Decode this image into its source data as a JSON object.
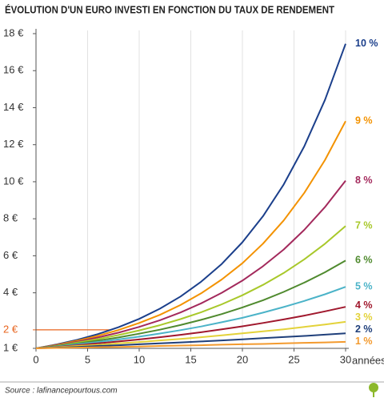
{
  "chart_data": {
    "type": "line",
    "title": "ÉVOLUTION D'UN EURO INVESTI EN FONCTION DU TAUX DE RENDEMENT",
    "x_label": "années",
    "source": "Source : lafinancepourtous.com",
    "x": [
      0,
      2,
      4,
      6,
      8,
      10,
      12,
      14,
      16,
      18,
      20,
      22,
      24,
      26,
      28,
      30
    ],
    "xlim": [
      0,
      30
    ],
    "xticks": [
      0,
      5,
      10,
      15,
      20,
      25,
      30
    ],
    "ylim": [
      1,
      18
    ],
    "yticks": [
      {
        "value": 1,
        "label": "1 €"
      },
      {
        "value": 2,
        "label": "2 €"
      },
      {
        "value": 4,
        "label": "4 €"
      },
      {
        "value": 6,
        "label": "6 €"
      },
      {
        "value": 8,
        "label": "8 €"
      },
      {
        "value": 10,
        "label": "10 €"
      },
      {
        "value": 12,
        "label": "12 €"
      },
      {
        "value": 14,
        "label": "14 €"
      },
      {
        "value": 16,
        "label": "16 €"
      },
      {
        "value": 18,
        "label": "18 €"
      }
    ],
    "reference_line": 2,
    "reference_color": "#e8641e",
    "grid": true,
    "series": [
      {
        "name": "10 %",
        "color": "#1b3f8b",
        "values": [
          1,
          1.21,
          1.46,
          1.77,
          2.14,
          2.59,
          3.14,
          3.8,
          4.6,
          5.56,
          6.73,
          8.14,
          9.85,
          11.92,
          14.42,
          17.45
        ]
      },
      {
        "name": "9 %",
        "color": "#f39200",
        "values": [
          1,
          1.19,
          1.41,
          1.68,
          1.99,
          2.37,
          2.81,
          3.34,
          3.97,
          4.72,
          5.6,
          6.66,
          7.91,
          9.4,
          11.17,
          13.27
        ]
      },
      {
        "name": "8 %",
        "color": "#a3295c",
        "values": [
          1,
          1.17,
          1.36,
          1.59,
          1.85,
          2.16,
          2.52,
          2.94,
          3.43,
          4.0,
          4.66,
          5.44,
          6.34,
          7.4,
          8.63,
          10.06
        ]
      },
      {
        "name": "7 %",
        "color": "#a8c82a",
        "values": [
          1,
          1.14,
          1.31,
          1.5,
          1.72,
          1.97,
          2.25,
          2.58,
          2.95,
          3.38,
          3.87,
          4.43,
          5.07,
          5.81,
          6.65,
          7.61
        ]
      },
      {
        "name": "6 %",
        "color": "#4f8a2e",
        "values": [
          1,
          1.12,
          1.26,
          1.42,
          1.59,
          1.79,
          2.01,
          2.26,
          2.54,
          2.85,
          3.21,
          3.6,
          4.05,
          4.55,
          5.11,
          5.74
        ]
      },
      {
        "name": "5 %",
        "color": "#4bb3c8",
        "values": [
          1,
          1.1,
          1.22,
          1.34,
          1.48,
          1.63,
          1.8,
          1.98,
          2.18,
          2.41,
          2.65,
          2.93,
          3.23,
          3.56,
          3.92,
          4.32
        ]
      },
      {
        "name": "4 %",
        "color": "#a0182d",
        "values": [
          1,
          1.08,
          1.17,
          1.27,
          1.37,
          1.48,
          1.6,
          1.73,
          1.87,
          2.03,
          2.19,
          2.37,
          2.56,
          2.77,
          3.0,
          3.24
        ]
      },
      {
        "name": "3 %",
        "color": "#e3d23a",
        "values": [
          1,
          1.06,
          1.13,
          1.19,
          1.27,
          1.34,
          1.43,
          1.51,
          1.6,
          1.7,
          1.81,
          1.92,
          2.03,
          2.16,
          2.29,
          2.43
        ]
      },
      {
        "name": "2 %",
        "color": "#1f3f7a",
        "values": [
          1,
          1.04,
          1.08,
          1.13,
          1.17,
          1.22,
          1.27,
          1.32,
          1.37,
          1.43,
          1.49,
          1.55,
          1.61,
          1.67,
          1.74,
          1.81
        ]
      },
      {
        "name": "1 %",
        "color": "#f39a2e",
        "values": [
          1,
          1.02,
          1.04,
          1.06,
          1.08,
          1.1,
          1.13,
          1.15,
          1.17,
          1.2,
          1.22,
          1.24,
          1.27,
          1.3,
          1.32,
          1.35
        ]
      }
    ]
  }
}
